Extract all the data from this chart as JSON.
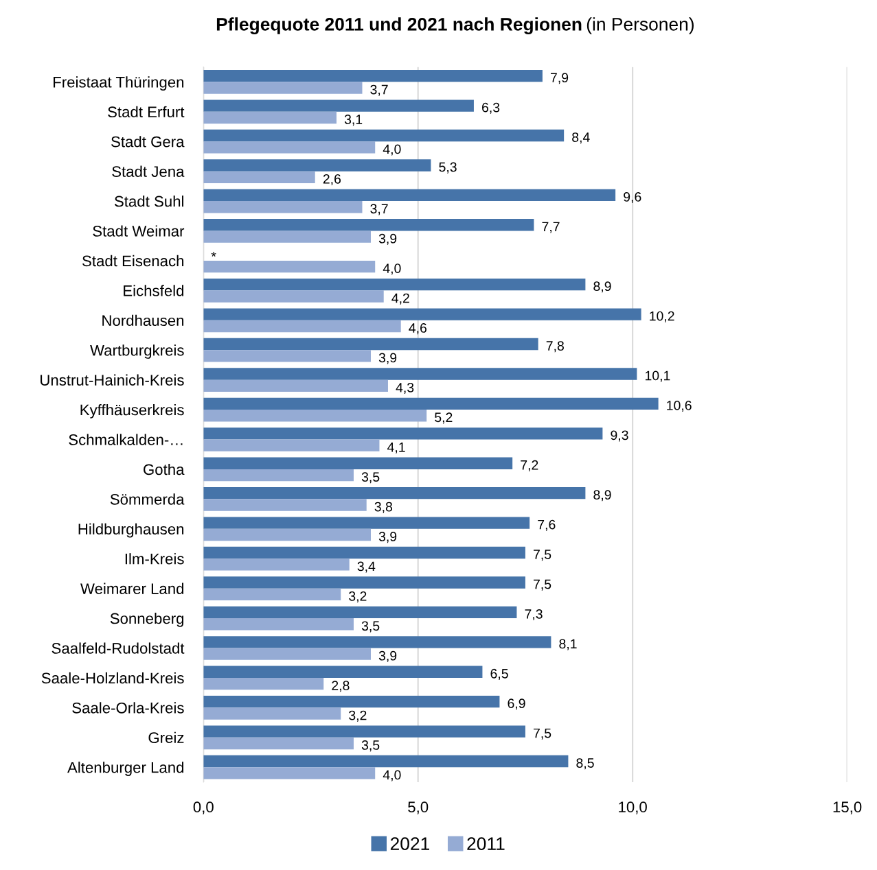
{
  "chart_data": {
    "type": "bar",
    "orientation": "horizontal",
    "title": "Pflegequote 2011 und 2021 nach Regionen",
    "subtitle": "(in Personen)",
    "categories": [
      "Freistaat Thüringen",
      "Stadt Erfurt",
      "Stadt Gera",
      "Stadt Jena",
      "Stadt Suhl",
      "Stadt Weimar",
      "Stadt Eisenach",
      "Eichsfeld",
      "Nordhausen",
      "Wartburgkreis",
      "Unstrut-Hainich-Kreis",
      "Kyffhäuserkreis",
      "Schmalkalden-…",
      "Gotha",
      "Sömmerda",
      "Hildburghausen",
      "Ilm-Kreis",
      "Weimarer Land",
      "Sonneberg",
      "Saalfeld-Rudolstadt",
      "Saale-Holzland-Kreis",
      "Saale-Orla-Kreis",
      "Greiz",
      "Altenburger Land"
    ],
    "series": [
      {
        "name": "2021",
        "color": "#4674a9",
        "values": [
          7.9,
          6.3,
          8.4,
          5.3,
          9.6,
          7.7,
          null,
          8.9,
          10.2,
          7.8,
          10.1,
          10.6,
          9.3,
          7.2,
          8.9,
          7.6,
          7.5,
          7.5,
          7.3,
          8.1,
          6.5,
          6.9,
          7.5,
          8.5
        ],
        "value_labels": [
          "7,9",
          "6,3",
          "8,4",
          "5,3",
          "9,6",
          "7,7",
          "*",
          "8,9",
          "10,2",
          "7,8",
          "10,1",
          "10,6",
          "9,3",
          "7,2",
          "8,9",
          "7,6",
          "7,5",
          "7,5",
          "7,3",
          "8,1",
          "6,5",
          "6,9",
          "7,5",
          "8,5"
        ]
      },
      {
        "name": "2011",
        "color": "#95abd4",
        "values": [
          3.7,
          3.1,
          4.0,
          2.6,
          3.7,
          3.9,
          4.0,
          4.2,
          4.6,
          3.9,
          4.3,
          5.2,
          4.1,
          3.5,
          3.8,
          3.9,
          3.4,
          3.2,
          3.5,
          3.9,
          2.8,
          3.2,
          3.5,
          4.0
        ],
        "value_labels": [
          "3,7",
          "3,1",
          "4,0",
          "2,6",
          "3,7",
          "3,9",
          "4,0",
          "4,2",
          "4,6",
          "3,9",
          "4,3",
          "5,2",
          "4,1",
          "3,5",
          "3,8",
          "3,9",
          "3,4",
          "3,2",
          "3,5",
          "3,9",
          "2,8",
          "3,2",
          "3,5",
          "4,0"
        ]
      }
    ],
    "xlim": [
      0,
      15
    ],
    "xticks": [
      {
        "value": 0,
        "label": "0,0"
      },
      {
        "value": 5,
        "label": "5,0"
      },
      {
        "value": 10,
        "label": "10,0"
      },
      {
        "value": 15,
        "label": "15,0"
      }
    ],
    "grid": "x",
    "legend": "bottom"
  }
}
